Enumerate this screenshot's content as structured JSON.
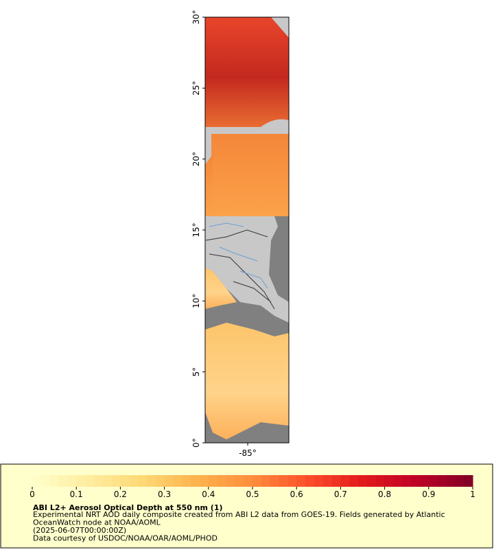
{
  "map": {
    "lat_ticks": [
      {
        "value": 0,
        "label": "0°"
      },
      {
        "value": 5,
        "label": "5°"
      },
      {
        "value": 10,
        "label": "10°"
      },
      {
        "value": 15,
        "label": "15°"
      },
      {
        "value": 20,
        "label": "20°"
      },
      {
        "value": 25,
        "label": "25°"
      },
      {
        "value": 30,
        "label": "30°"
      }
    ],
    "lat_range": [
      0,
      30
    ],
    "lon_ticks": [
      {
        "value": -85,
        "label": "-85°"
      }
    ],
    "lon_range": [
      -88,
      -82.1
    ]
  },
  "colorbar": {
    "range": [
      0,
      1
    ],
    "ticks": [
      0,
      0.1,
      0.2,
      0.3,
      0.4,
      0.5,
      0.6,
      0.7,
      0.8,
      0.9,
      1
    ],
    "colors": [
      "#ffffcc",
      "#ffeda0",
      "#fed976",
      "#feb24c",
      "#fd8d3c",
      "#fc4e2a",
      "#e31a1c",
      "#bd0026",
      "#800026"
    ]
  },
  "caption": {
    "title": "ABI L2+ Aerosol Optical Depth at 550 nm (1)",
    "lines": [
      "Experimental NRT AOD daily composite created from ABI L2 data from GOES-19. Fields generated by Atlantic",
      "OceanWatch node at NOAA/AOML",
      "(2025-06-07T00:00:00Z)",
      "Data courtesy of USDOC/NOAA/OAR/AOML/PHOD"
    ]
  }
}
